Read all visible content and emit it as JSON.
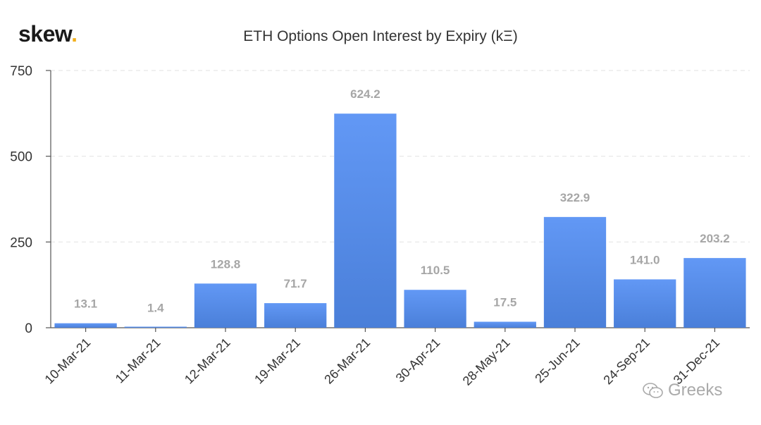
{
  "brand": {
    "logo_text": "skew",
    "logo_dot": ".",
    "accent": "#f2b01e"
  },
  "watermark": {
    "text": "Greeks",
    "icon": "wechat-icon"
  },
  "chart_data": {
    "type": "bar",
    "title": "ETH Options Open Interest by Expiry (kΞ)",
    "xlabel": "",
    "ylabel": "",
    "categories": [
      "10-Mar-21",
      "11-Mar-21",
      "12-Mar-21",
      "19-Mar-21",
      "26-Mar-21",
      "30-Apr-21",
      "28-May-21",
      "25-Jun-21",
      "24-Sep-21",
      "31-Dec-21"
    ],
    "values": [
      13.1,
      1.4,
      128.8,
      71.7,
      624.2,
      110.5,
      17.5,
      322.9,
      141.0,
      203.2
    ],
    "value_labels": [
      "13.1",
      "1.4",
      "128.8",
      "71.7",
      "624.2",
      "110.5",
      "17.5",
      "322.9",
      "141.0",
      "203.2"
    ],
    "ylim": [
      0,
      750
    ],
    "yticks": [
      0,
      250,
      500,
      750
    ],
    "grid": true,
    "bar_color_top": "#6298f5",
    "bar_color_bottom": "#4a7fd9"
  }
}
